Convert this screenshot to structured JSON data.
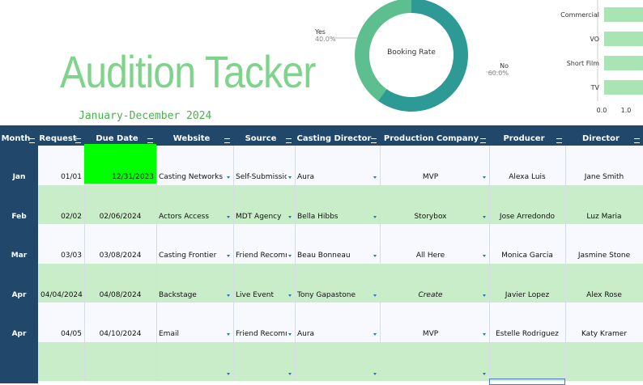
{
  "header": {
    "title": "Audition Tacker",
    "subtitle": "January-December 2024"
  },
  "booking_chart": {
    "type": "pie",
    "center_label": "Booking Rate",
    "categories": [
      "Yes",
      "No"
    ],
    "values": [
      40,
      60
    ],
    "value_labels": [
      "40.0%",
      "60.0%"
    ],
    "colors": [
      "#5dbf8f",
      "#2e9a95"
    ]
  },
  "type_chart": {
    "type": "bar",
    "orientation": "horizontal",
    "categories": [
      "Commercial",
      "VO",
      "Short Film",
      "TV"
    ],
    "values": [
      2,
      2,
      2,
      2
    ],
    "color": "#a8e4b4",
    "xlim": [
      0,
      3
    ],
    "xticks": [
      {
        "value": 0,
        "label": "0.0"
      },
      {
        "value": 1,
        "label": "1.0"
      }
    ]
  },
  "table": {
    "headers": [
      "Month",
      "Request",
      "Due Date",
      "Website",
      "Source",
      "Casting Director",
      "Production Company",
      "Producer",
      "Director"
    ],
    "rows": [
      [
        "Jan",
        "01/01",
        "12/31/2023",
        "Casting Networks",
        "Self-Submission",
        "Aura",
        "MVP",
        "Alexa Luis",
        "Jane Smith"
      ],
      [
        "Feb",
        "02/02",
        "02/06/2024",
        "Actors Access",
        "MDT Agency",
        "Bella Hibbs",
        "Storybox",
        "Jose Arredondo",
        "Luz Maria"
      ],
      [
        "Mar",
        "03/03",
        "03/08/2024",
        "Casting Frontier",
        "Friend Recomme",
        "Beau Bonneau",
        "All Here",
        "Monica Garcia",
        "Jasmine Stone"
      ],
      [
        "Apr",
        "04/04/2024",
        "04/08/2024",
        "Backstage",
        "Live Event",
        "Tony Gapastone",
        "Create",
        "Javier Lopez",
        "Alex Rose"
      ],
      [
        "Apr",
        "04/05",
        "04/10/2024",
        "Email",
        "Friend Recomme",
        "Aura",
        "MVP",
        "Estelle Rodriguez",
        "Katy Kramer"
      ]
    ]
  }
}
